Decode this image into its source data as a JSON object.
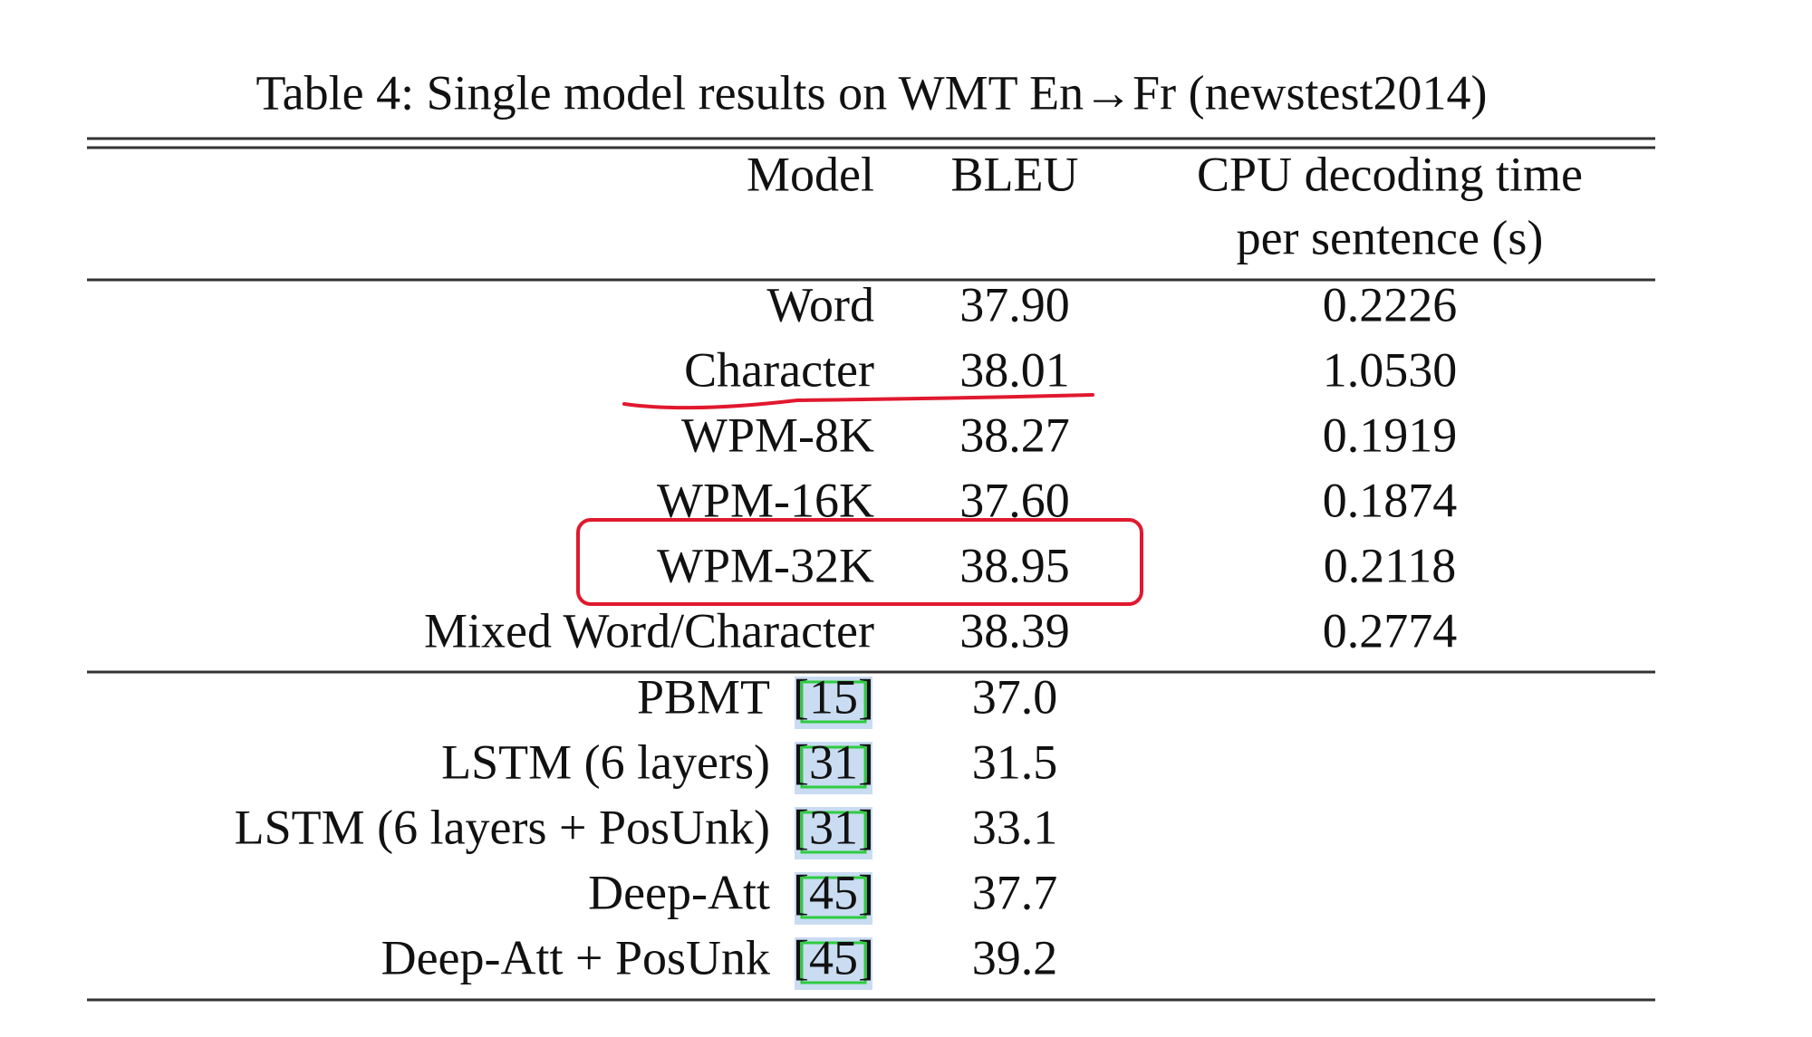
{
  "caption": "Table 4: Single model results on WMT En→Fr (newstest2014)",
  "table": {
    "header": {
      "model": "Model",
      "bleu": "BLEU",
      "cpu": [
        "CPU decoding time",
        "per sentence (s)"
      ]
    },
    "groups": [
      [
        {
          "model": "Word",
          "bleu": "37.90",
          "cpu": "0.2226"
        },
        {
          "model": "Character",
          "bleu": "38.01",
          "cpu": "1.0530"
        },
        {
          "model": "WPM-8K",
          "bleu": "38.27",
          "cpu": "0.1919"
        },
        {
          "model": "WPM-16K",
          "bleu": "37.60",
          "cpu": "0.1874"
        },
        {
          "model": "WPM-32K",
          "bleu": "38.95",
          "cpu": "0.2118"
        },
        {
          "model": "Mixed Word/Character",
          "bleu": "38.39",
          "cpu": "0.2774"
        }
      ],
      [
        {
          "model": "PBMT",
          "cite": "[15]",
          "bleu": "37.0"
        },
        {
          "model": "LSTM (6 layers)",
          "cite": "[31]",
          "bleu": "31.5"
        },
        {
          "model": "LSTM (6 layers + PosUnk)",
          "cite": "[31]",
          "bleu": "33.1"
        },
        {
          "model": "Deep-Att",
          "cite": "[45]",
          "bleu": "37.7"
        },
        {
          "model": "Deep-Att + PosUnk",
          "cite": "[45]",
          "bleu": "39.2"
        }
      ]
    ]
  }
}
